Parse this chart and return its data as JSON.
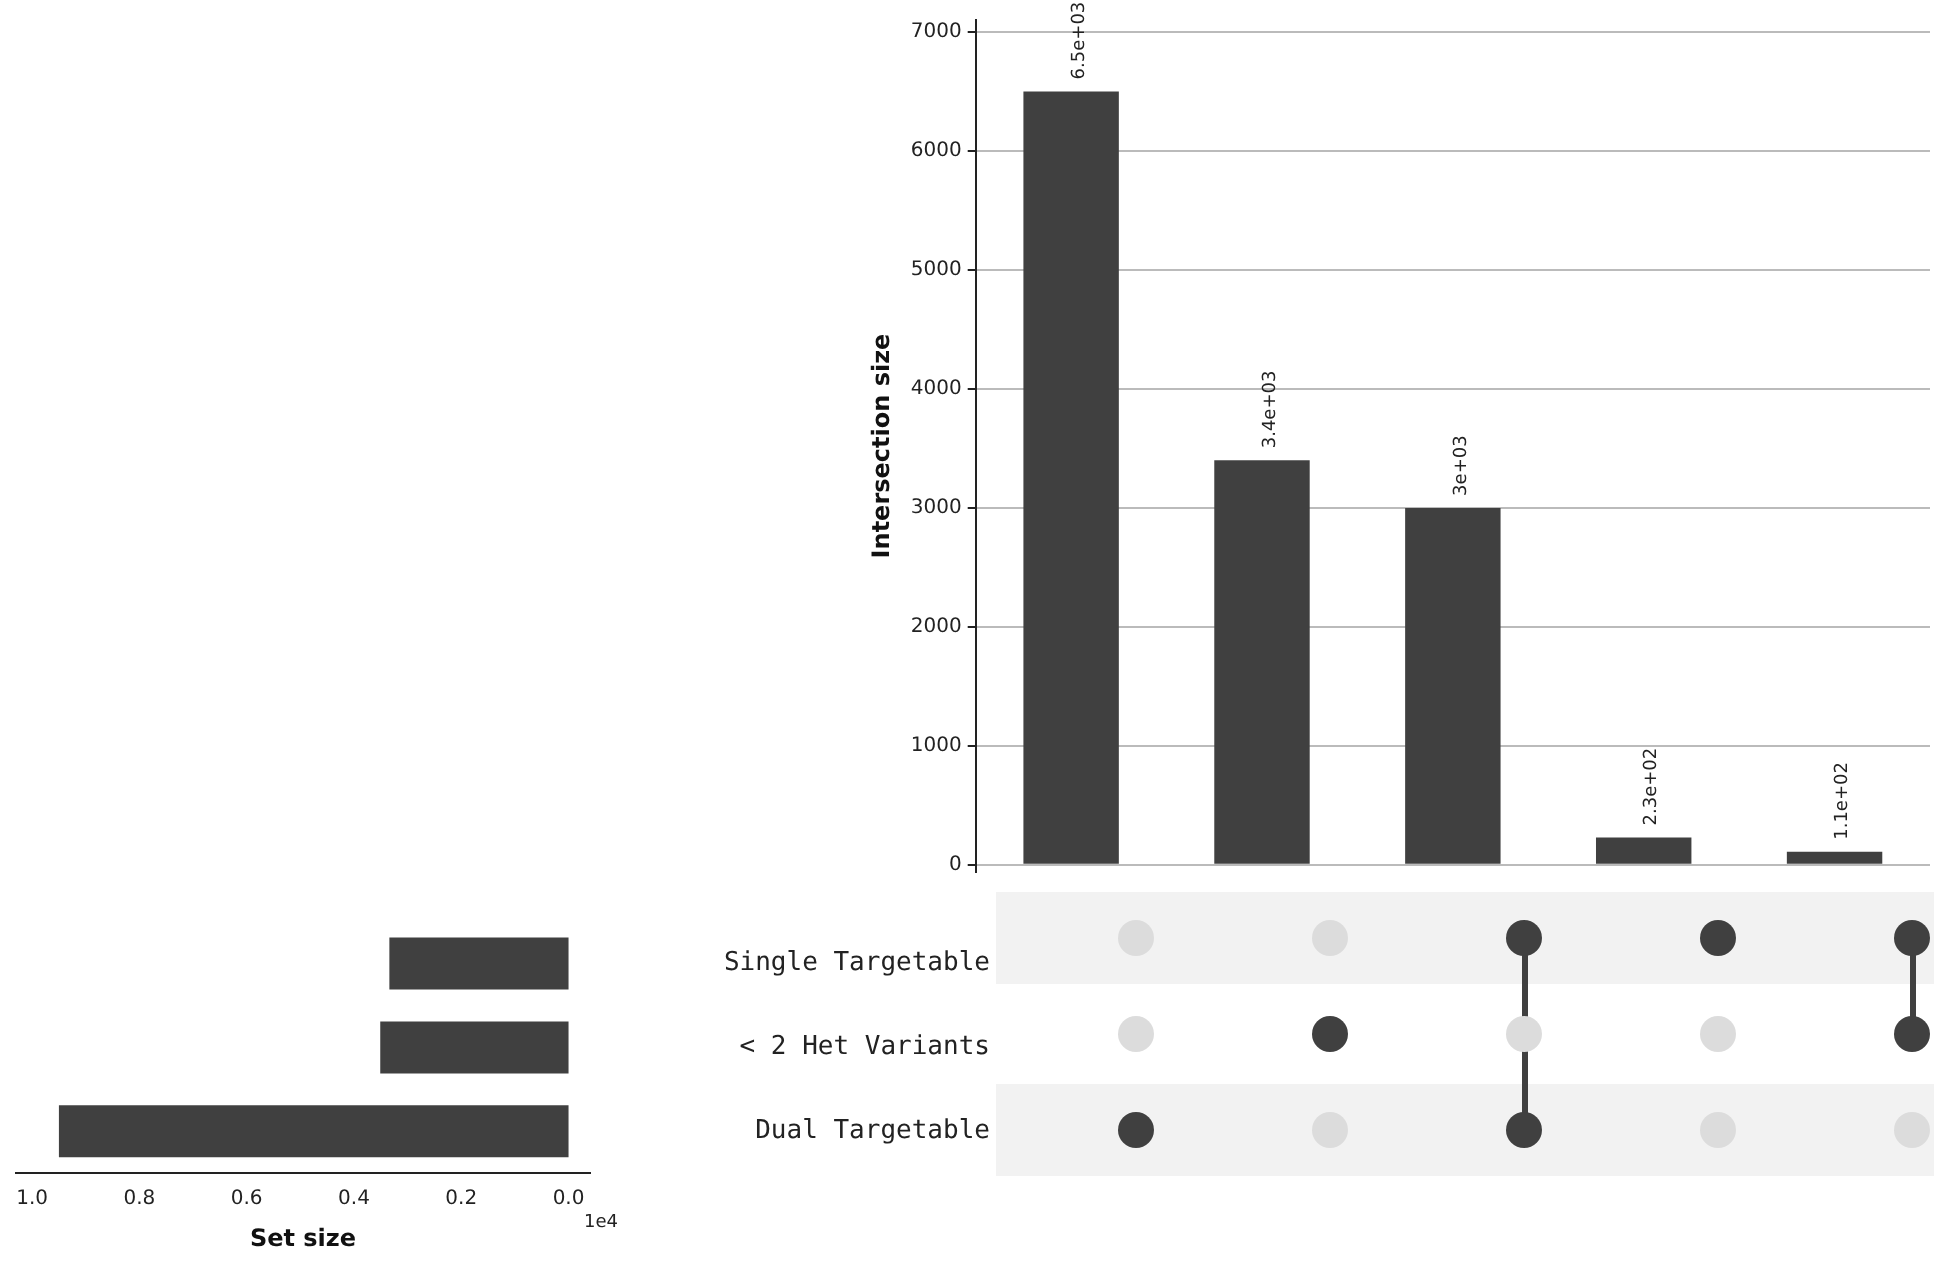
{
  "chart_data": [
    {
      "type": "bar",
      "categories": [
        null,
        null,
        null,
        null,
        null
      ],
      "values": [
        6500,
        3400,
        3000,
        230,
        110
      ],
      "color": "#404040",
      "value_labels": [
        "6.5e+03",
        "3.4e+03",
        "3e+03",
        "2.3e+02",
        "1.1e+02"
      ],
      "ylabel": "Intersection size",
      "ylim": [
        -60,
        7100
      ],
      "yticks": [
        0,
        1000,
        2000,
        3000,
        4000,
        5000,
        6000,
        7000
      ],
      "grid": "y",
      "tick_labels": "y"
    },
    {
      "type": "bar",
      "orientation": "horizontal",
      "categories": [
        "Single Targetable",
        "< 2 Het Variants",
        "Dual Targetable"
      ],
      "values": [
        0.334,
        0.351,
        0.95
      ],
      "color": "#404040",
      "xlabel": "Set size",
      "xlim": [
        1.03,
        -0.04
      ],
      "xticks": [
        {
          "value": 1,
          "label": "1.0"
        },
        {
          "value": 0.8,
          "label": "0.8"
        },
        {
          "value": 0.6,
          "label": "0.6"
        },
        {
          "value": 0.4,
          "label": "0.4"
        },
        {
          "value": 0.2,
          "label": "0.2"
        },
        {
          "value": 0,
          "label": "0.0"
        }
      ],
      "annotations": [
        "1e4"
      ]
    }
  ]
}
